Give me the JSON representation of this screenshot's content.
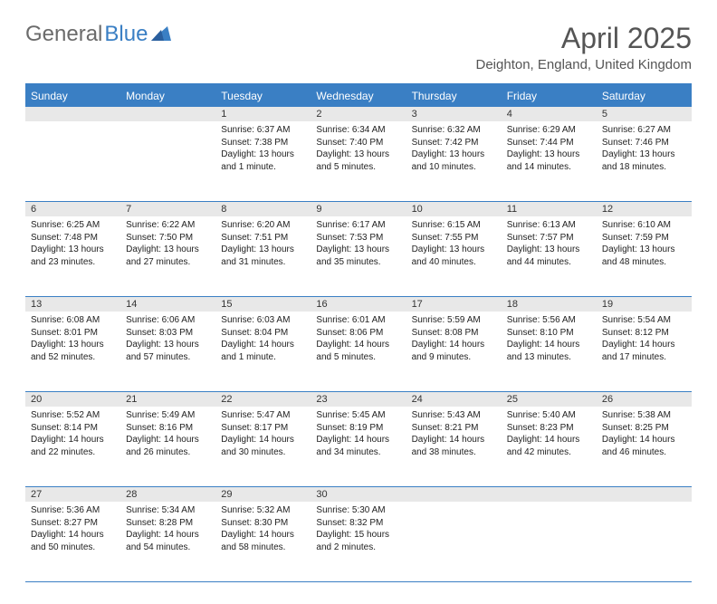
{
  "logo": {
    "text_gray": "General",
    "text_blue": "Blue"
  },
  "header": {
    "month_title": "April 2025",
    "location": "Deighton, England, United Kingdom"
  },
  "daynames": [
    "Sunday",
    "Monday",
    "Tuesday",
    "Wednesday",
    "Thursday",
    "Friday",
    "Saturday"
  ],
  "colors": {
    "header_bg": "#3a7fc4",
    "header_fg": "#ffffff",
    "daynum_bg": "#e8e8e8",
    "rule": "#3a7fc4",
    "body_text": "#222222",
    "logo_gray": "#6b6b6b",
    "logo_blue": "#3a7fc4"
  },
  "weeks": [
    [
      null,
      null,
      {
        "n": "1",
        "sr": "Sunrise: 6:37 AM",
        "ss": "Sunset: 7:38 PM",
        "d1": "Daylight: 13 hours",
        "d2": "and 1 minute."
      },
      {
        "n": "2",
        "sr": "Sunrise: 6:34 AM",
        "ss": "Sunset: 7:40 PM",
        "d1": "Daylight: 13 hours",
        "d2": "and 5 minutes."
      },
      {
        "n": "3",
        "sr": "Sunrise: 6:32 AM",
        "ss": "Sunset: 7:42 PM",
        "d1": "Daylight: 13 hours",
        "d2": "and 10 minutes."
      },
      {
        "n": "4",
        "sr": "Sunrise: 6:29 AM",
        "ss": "Sunset: 7:44 PM",
        "d1": "Daylight: 13 hours",
        "d2": "and 14 minutes."
      },
      {
        "n": "5",
        "sr": "Sunrise: 6:27 AM",
        "ss": "Sunset: 7:46 PM",
        "d1": "Daylight: 13 hours",
        "d2": "and 18 minutes."
      }
    ],
    [
      {
        "n": "6",
        "sr": "Sunrise: 6:25 AM",
        "ss": "Sunset: 7:48 PM",
        "d1": "Daylight: 13 hours",
        "d2": "and 23 minutes."
      },
      {
        "n": "7",
        "sr": "Sunrise: 6:22 AM",
        "ss": "Sunset: 7:50 PM",
        "d1": "Daylight: 13 hours",
        "d2": "and 27 minutes."
      },
      {
        "n": "8",
        "sr": "Sunrise: 6:20 AM",
        "ss": "Sunset: 7:51 PM",
        "d1": "Daylight: 13 hours",
        "d2": "and 31 minutes."
      },
      {
        "n": "9",
        "sr": "Sunrise: 6:17 AM",
        "ss": "Sunset: 7:53 PM",
        "d1": "Daylight: 13 hours",
        "d2": "and 35 minutes."
      },
      {
        "n": "10",
        "sr": "Sunrise: 6:15 AM",
        "ss": "Sunset: 7:55 PM",
        "d1": "Daylight: 13 hours",
        "d2": "and 40 minutes."
      },
      {
        "n": "11",
        "sr": "Sunrise: 6:13 AM",
        "ss": "Sunset: 7:57 PM",
        "d1": "Daylight: 13 hours",
        "d2": "and 44 minutes."
      },
      {
        "n": "12",
        "sr": "Sunrise: 6:10 AM",
        "ss": "Sunset: 7:59 PM",
        "d1": "Daylight: 13 hours",
        "d2": "and 48 minutes."
      }
    ],
    [
      {
        "n": "13",
        "sr": "Sunrise: 6:08 AM",
        "ss": "Sunset: 8:01 PM",
        "d1": "Daylight: 13 hours",
        "d2": "and 52 minutes."
      },
      {
        "n": "14",
        "sr": "Sunrise: 6:06 AM",
        "ss": "Sunset: 8:03 PM",
        "d1": "Daylight: 13 hours",
        "d2": "and 57 minutes."
      },
      {
        "n": "15",
        "sr": "Sunrise: 6:03 AM",
        "ss": "Sunset: 8:04 PM",
        "d1": "Daylight: 14 hours",
        "d2": "and 1 minute."
      },
      {
        "n": "16",
        "sr": "Sunrise: 6:01 AM",
        "ss": "Sunset: 8:06 PM",
        "d1": "Daylight: 14 hours",
        "d2": "and 5 minutes."
      },
      {
        "n": "17",
        "sr": "Sunrise: 5:59 AM",
        "ss": "Sunset: 8:08 PM",
        "d1": "Daylight: 14 hours",
        "d2": "and 9 minutes."
      },
      {
        "n": "18",
        "sr": "Sunrise: 5:56 AM",
        "ss": "Sunset: 8:10 PM",
        "d1": "Daylight: 14 hours",
        "d2": "and 13 minutes."
      },
      {
        "n": "19",
        "sr": "Sunrise: 5:54 AM",
        "ss": "Sunset: 8:12 PM",
        "d1": "Daylight: 14 hours",
        "d2": "and 17 minutes."
      }
    ],
    [
      {
        "n": "20",
        "sr": "Sunrise: 5:52 AM",
        "ss": "Sunset: 8:14 PM",
        "d1": "Daylight: 14 hours",
        "d2": "and 22 minutes."
      },
      {
        "n": "21",
        "sr": "Sunrise: 5:49 AM",
        "ss": "Sunset: 8:16 PM",
        "d1": "Daylight: 14 hours",
        "d2": "and 26 minutes."
      },
      {
        "n": "22",
        "sr": "Sunrise: 5:47 AM",
        "ss": "Sunset: 8:17 PM",
        "d1": "Daylight: 14 hours",
        "d2": "and 30 minutes."
      },
      {
        "n": "23",
        "sr": "Sunrise: 5:45 AM",
        "ss": "Sunset: 8:19 PM",
        "d1": "Daylight: 14 hours",
        "d2": "and 34 minutes."
      },
      {
        "n": "24",
        "sr": "Sunrise: 5:43 AM",
        "ss": "Sunset: 8:21 PM",
        "d1": "Daylight: 14 hours",
        "d2": "and 38 minutes."
      },
      {
        "n": "25",
        "sr": "Sunrise: 5:40 AM",
        "ss": "Sunset: 8:23 PM",
        "d1": "Daylight: 14 hours",
        "d2": "and 42 minutes."
      },
      {
        "n": "26",
        "sr": "Sunrise: 5:38 AM",
        "ss": "Sunset: 8:25 PM",
        "d1": "Daylight: 14 hours",
        "d2": "and 46 minutes."
      }
    ],
    [
      {
        "n": "27",
        "sr": "Sunrise: 5:36 AM",
        "ss": "Sunset: 8:27 PM",
        "d1": "Daylight: 14 hours",
        "d2": "and 50 minutes."
      },
      {
        "n": "28",
        "sr": "Sunrise: 5:34 AM",
        "ss": "Sunset: 8:28 PM",
        "d1": "Daylight: 14 hours",
        "d2": "and 54 minutes."
      },
      {
        "n": "29",
        "sr": "Sunrise: 5:32 AM",
        "ss": "Sunset: 8:30 PM",
        "d1": "Daylight: 14 hours",
        "d2": "and 58 minutes."
      },
      {
        "n": "30",
        "sr": "Sunrise: 5:30 AM",
        "ss": "Sunset: 8:32 PM",
        "d1": "Daylight: 15 hours",
        "d2": "and 2 minutes."
      },
      null,
      null,
      null
    ]
  ]
}
